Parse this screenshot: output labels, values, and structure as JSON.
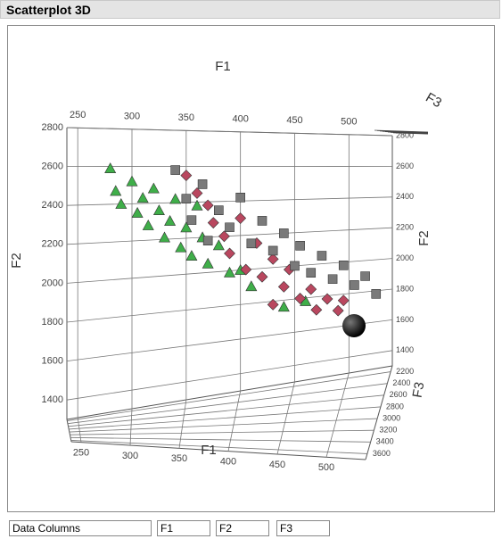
{
  "panel": {
    "title": "Scatterplot 3D"
  },
  "chart_data": {
    "type": "scatter3d",
    "xlabel": "F1",
    "ylabel": "F2",
    "zlabel": "F3",
    "xlim": [
      240,
      540
    ],
    "xticks": [
      250,
      300,
      350,
      400,
      450,
      500
    ],
    "ylim": [
      1300,
      2800
    ],
    "yticks": [
      1400,
      1600,
      1800,
      2000,
      2200,
      2400,
      2600,
      2800
    ],
    "zlim": [
      2100,
      3700
    ],
    "zticks": [
      2200,
      2400,
      2600,
      2800,
      3000,
      3200,
      3400,
      3600
    ],
    "grid": true,
    "series": [
      {
        "color": "#3fae49",
        "marker": "triangle",
        "x": [
          280,
          285,
          290,
          300,
          305,
          310,
          315,
          320,
          325,
          330,
          335,
          340,
          345,
          350,
          355,
          360,
          365,
          370,
          380,
          390,
          400,
          410,
          440,
          460
        ],
        "values": [
          2590,
          2470,
          2400,
          2520,
          2350,
          2430,
          2280,
          2480,
          2360,
          2210,
          2300,
          2420,
          2150,
          2260,
          2100,
          2380,
          2200,
          2050,
          2150,
          1990,
          2000,
          1900,
          1760,
          1780
        ]
      },
      {
        "color": "#b9475f",
        "marker": "diamond",
        "x": [
          350,
          360,
          370,
          375,
          385,
          390,
          400,
          405,
          415,
          420,
          430,
          440,
          445,
          455,
          465,
          470,
          480,
          490,
          495,
          430
        ],
        "values": [
          2550,
          2450,
          2380,
          2280,
          2200,
          2100,
          2300,
          2000,
          2150,
          1950,
          2050,
          1880,
          1980,
          1800,
          1850,
          1720,
          1780,
          1700,
          1760,
          1780
        ]
      },
      {
        "color": "#7a7a7a",
        "marker": "square",
        "x": [
          340,
          350,
          355,
          365,
          370,
          380,
          390,
          400,
          410,
          420,
          430,
          440,
          450,
          455,
          465,
          475,
          485,
          495,
          505,
          515,
          525
        ],
        "values": [
          2580,
          2420,
          2300,
          2500,
          2180,
          2350,
          2250,
          2420,
          2150,
          2280,
          2100,
          2200,
          2000,
          2120,
          1950,
          2050,
          1900,
          1980,
          1850,
          1900,
          1780
        ]
      }
    ]
  },
  "controls": {
    "label": "Data Columns",
    "columns": [
      "F1",
      "F2",
      "F3"
    ]
  }
}
